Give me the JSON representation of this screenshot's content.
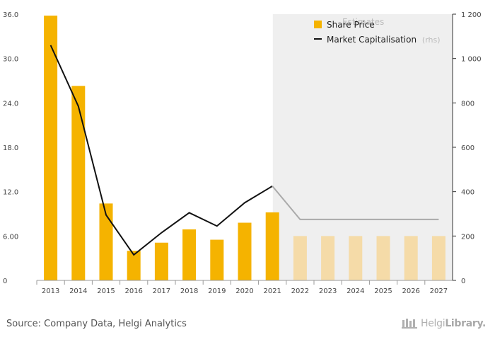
{
  "chart_data": {
    "type": "bar",
    "categories": [
      "2013",
      "2014",
      "2015",
      "2016",
      "2017",
      "2018",
      "2019",
      "2020",
      "2021",
      "2022",
      "2023",
      "2024",
      "2025",
      "2026",
      "2027"
    ],
    "estimates_from_index": 9,
    "estimates_label": "Estimates",
    "series": [
      {
        "name": "Share Price",
        "type": "bar",
        "axis": "left",
        "values": [
          35.8,
          26.3,
          10.4,
          4.0,
          5.1,
          6.9,
          5.5,
          7.8,
          9.2,
          6.0,
          6.0,
          6.0,
          6.0,
          6.0,
          6.0
        ]
      },
      {
        "name": "Market Capitalisation",
        "type": "line",
        "axis": "right",
        "values": [
          1060,
          785,
          295,
          115,
          215,
          305,
          245,
          350,
          425,
          275,
          275,
          275,
          275,
          275,
          275
        ]
      }
    ],
    "legend": {
      "items": [
        "Share Price",
        "Market Capitalisation"
      ],
      "rhs_suffix": "(rhs)",
      "position": "top-right"
    },
    "y_left": {
      "range": [
        0,
        36
      ],
      "ticks": [
        "0",
        "6.00",
        "12.0",
        "18.0",
        "24.0",
        "30.0",
        "36.0"
      ]
    },
    "y_right": {
      "range": [
        0,
        1200
      ],
      "ticks": [
        "0",
        "200",
        "400",
        "600",
        "800",
        "1 000",
        "1 200"
      ]
    },
    "colors": {
      "bar": "#f5b300",
      "bar_estimate": "#f5dba8",
      "line": "#111111",
      "line_estimate": "#aaaaaa",
      "estimate_bg": "#efefef"
    },
    "grid": false
  },
  "footer": {
    "source": "Source: Company Data, Helgi Analytics",
    "brand_light": "Helgi",
    "brand_bold": "Library."
  }
}
